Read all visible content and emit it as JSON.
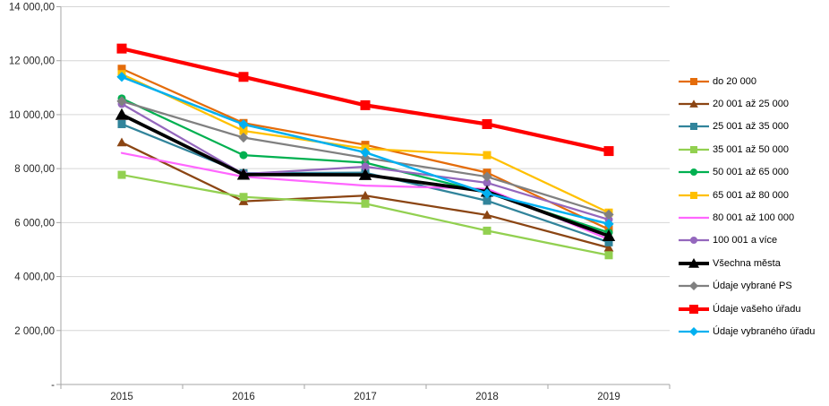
{
  "chart_data": {
    "type": "line",
    "title": "",
    "xlabel": "",
    "ylabel": "",
    "x_labels": [
      "2015",
      "2016",
      "2017",
      "2018",
      "2019"
    ],
    "ylim": [
      0,
      14000
    ],
    "grid": true,
    "legend_position": "right",
    "y_ticks": [
      {
        "value": 14000,
        "label": "14 000,00"
      },
      {
        "value": 12000,
        "label": "12 000,00"
      },
      {
        "value": 10000,
        "label": "10 000,00"
      },
      {
        "value": 8000,
        "label": "8 000,00"
      },
      {
        "value": 6000,
        "label": "6 000,00"
      },
      {
        "value": 4000,
        "label": "4 000,00"
      },
      {
        "value": 2000,
        "label": "2 000,00"
      },
      {
        "value": 0,
        "label": "-"
      }
    ],
    "series": [
      {
        "name": "do 20 000",
        "color": "#E46C0A",
        "marker": "square",
        "line_width": 2.25,
        "values": [
          11700,
          9690,
          8880,
          7850,
          5750
        ]
      },
      {
        "name": "20 001 až 25 000",
        "color": "#8B4513",
        "marker": "triangle",
        "line_width": 2.25,
        "values": [
          8970,
          6790,
          7000,
          6280,
          5070
        ]
      },
      {
        "name": "25 001 až 35 000",
        "color": "#31849B",
        "marker": "square",
        "line_width": 2.25,
        "values": [
          9650,
          7830,
          7850,
          6810,
          5270
        ]
      },
      {
        "name": "35 001 až 50 000",
        "color": "#92D050",
        "marker": "square",
        "line_width": 2.25,
        "values": [
          7770,
          6950,
          6700,
          5700,
          4790
        ]
      },
      {
        "name": "50 001 až 65 000",
        "color": "#00B050",
        "marker": "circle",
        "line_width": 2.25,
        "values": [
          10600,
          8500,
          8220,
          7100,
          5630
        ]
      },
      {
        "name": "65 001 až 80 000",
        "color": "#FFC000",
        "marker": "square",
        "line_width": 2.25,
        "values": [
          11500,
          9400,
          8740,
          8500,
          6370
        ]
      },
      {
        "name": "80 001 až 100 000",
        "color": "#FF66FF",
        "marker": "none",
        "line_width": 2.25,
        "values": [
          8580,
          7700,
          7370,
          7250,
          5380
        ]
      },
      {
        "name": "100 001 a více",
        "color": "#9467BD",
        "marker": "circle",
        "line_width": 2.25,
        "values": [
          10400,
          7800,
          8070,
          7475,
          6110
        ]
      },
      {
        "name": "Všechna města",
        "color": "#000000",
        "marker": "triangle",
        "line_width": 3.75,
        "values": [
          10000,
          7780,
          7770,
          7150,
          5505
        ]
      },
      {
        "name": "Údaje vybrané PS",
        "color": "#808080",
        "marker": "diamond",
        "line_width": 2.25,
        "values": [
          10500,
          9150,
          8400,
          7700,
          6300
        ]
      },
      {
        "name": "Údaje vašeho úřadu",
        "color": "#FF0000",
        "marker": "square",
        "line_width": 4.25,
        "values": [
          12450,
          11400,
          10350,
          9650,
          8650
        ]
      },
      {
        "name": "Údaje vybraného úřadu",
        "color": "#00B0F0",
        "marker": "diamond",
        "line_width": 2.5,
        "values": [
          11400,
          9640,
          8600,
          7080,
          5950
        ]
      }
    ]
  }
}
